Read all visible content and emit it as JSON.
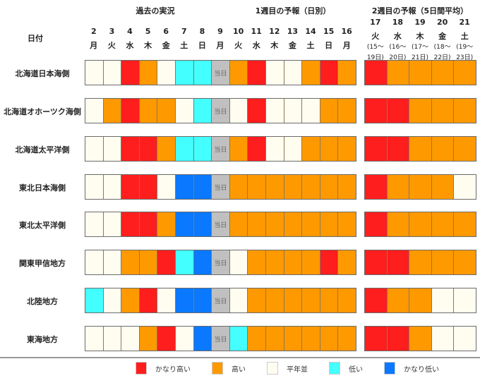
{
  "chart_data": {
    "type": "heatmap",
    "title": "",
    "sections": {
      "past": "過去の実況",
      "week1": "1週目の予報（日別）",
      "week2": "2週目の予報（5日間平均）"
    },
    "date_label": "日付",
    "today_label": "当日",
    "days": [
      {
        "d": "2",
        "w": "月"
      },
      {
        "d": "3",
        "w": "火"
      },
      {
        "d": "4",
        "w": "水"
      },
      {
        "d": "5",
        "w": "木"
      },
      {
        "d": "6",
        "w": "金"
      },
      {
        "d": "7",
        "w": "土"
      },
      {
        "d": "8",
        "w": "日"
      },
      {
        "d": "9",
        "w": "月"
      },
      {
        "d": "10",
        "w": "火"
      },
      {
        "d": "11",
        "w": "水"
      },
      {
        "d": "12",
        "w": "木"
      },
      {
        "d": "13",
        "w": "金"
      },
      {
        "d": "14",
        "w": "土"
      },
      {
        "d": "15",
        "w": "日"
      },
      {
        "d": "16",
        "w": "月"
      }
    ],
    "week2_days": [
      {
        "d": "17",
        "w": "火",
        "r1": "(15〜",
        "r2": "19日)"
      },
      {
        "d": "18",
        "w": "水",
        "r1": "(16〜",
        "r2": "20日)"
      },
      {
        "d": "19",
        "w": "木",
        "r1": "(17〜",
        "r2": "21日)"
      },
      {
        "d": "20",
        "w": "金",
        "r1": "(18〜",
        "r2": "22日)"
      },
      {
        "d": "21",
        "w": "土",
        "r1": "(19〜",
        "r2": "23日)"
      }
    ],
    "legend": [
      {
        "key": "R",
        "label": "かなり高い",
        "color": "#ff1e1e"
      },
      {
        "key": "O",
        "label": "高い",
        "color": "#ff9900"
      },
      {
        "key": "N",
        "label": "平年並",
        "color": "#fffdf0"
      },
      {
        "key": "C",
        "label": "低い",
        "color": "#44ffff"
      },
      {
        "key": "B",
        "label": "かなり低い",
        "color": "#0a78ff"
      }
    ],
    "today_color": "#c0c0c0",
    "rows": [
      {
        "region": "北海道日本海側",
        "daily": "NNRONCCTORNNORO",
        "week2": "ROOOO"
      },
      {
        "region": "北海道オホーツク海側",
        "daily": "NOROONCTNRNNNOO",
        "week2": "RROOO"
      },
      {
        "region": "北海道太平洋側",
        "daily": "NNRROCCTORNNOOO",
        "week2": "RROOO"
      },
      {
        "region": "東北日本海側",
        "daily": "NNRRNBBTOOOOOOO",
        "week2": "ROOON"
      },
      {
        "region": "東北太平洋側",
        "daily": "NNRROBBTOOOOOOO",
        "week2": "ROOOO"
      },
      {
        "region": "関東甲信地方",
        "daily": "NNOORCBTNOOOORO",
        "week2": "RROOO"
      },
      {
        "region": "北陸地方",
        "daily": "CNORNBBTNOOOOOO",
        "week2": "ROONN"
      },
      {
        "region": "東海地方",
        "daily": "NNNORNBTCOOOOOO",
        "week2": "RRONN"
      }
    ]
  }
}
